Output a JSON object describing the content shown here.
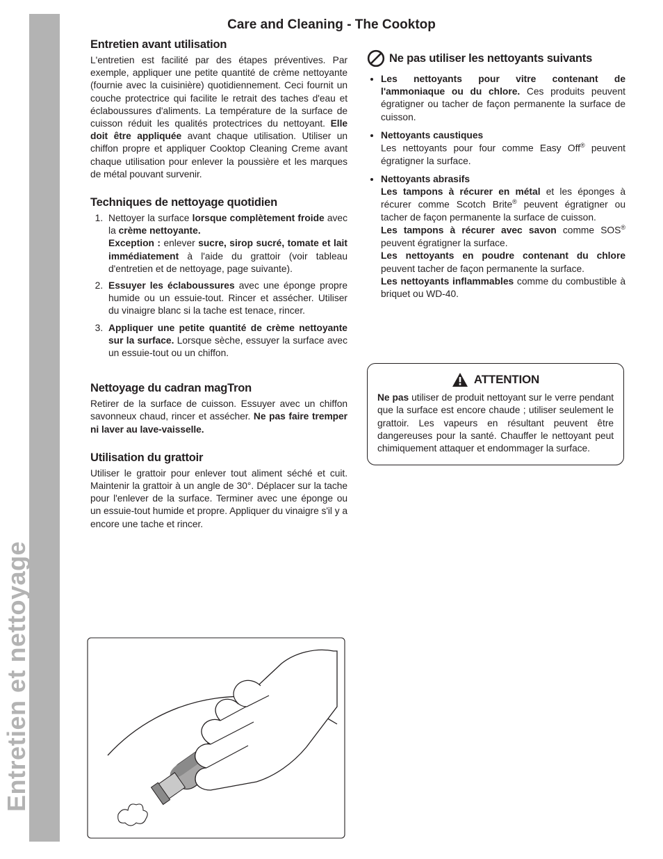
{
  "page": {
    "title": "Care and Cleaning - The Cooktop",
    "sidebar_label": "Entretien et nettoyage"
  },
  "colors": {
    "text": "#231f20",
    "sidebar_bg": "#b3b3b3",
    "sidebar_text": "#b3b3b3",
    "page_bg": "#ffffff",
    "box_border": "#231f20",
    "illus_fill": "#a7a6a6",
    "illus_fill_dark": "#8a8a8a",
    "illus_line": "#231f20"
  },
  "left": {
    "s1": {
      "heading": "Entretien avant utilisation",
      "body_html": "L'entretien est facilité par des étapes préventives. Par exemple, appliquer une petite quantité de crème nettoyante (fournie avec la cuisinière) quotidiennement. Ceci fournit un couche protectrice qui facilite le retrait des taches d'eau et éclaboussures d'aliments. La température de la surface de cuisson réduit les qualités protectrices du nettoyant. <b>Elle doit être appliquée</b> avant chaque utilisation. Utiliser un chiffon propre et appliquer Cooktop Cleaning Creme avant chaque utilisation pour enlever la poussière et les marques de métal pouvant survenir."
    },
    "s2": {
      "heading": "Techniques de nettoyage quotidien",
      "items": [
        "Nettoyer la surface <b>lorsque complètement froide</b> avec la <b>crème nettoyante.</b><br><b>Exception :</b> enlever <b>sucre, sirop sucré, tomate et lait immédiatement</b> à l'aide du grattoir (voir tableau d'entretien et de nettoyage, page suivante).",
        "<b>Essuyer les éclaboussures</b> avec une éponge propre humide ou un essuie-tout. Rincer et assécher. Utiliser du vinaigre blanc si la tache est tenace, rincer.",
        "<b>Appliquer une petite quantité de crème nettoyante sur la surface.</b> Lorsque sèche, essuyer la surface avec un essuie-tout ou un chiffon."
      ]
    },
    "s3": {
      "heading": "Nettoyage du cadran magTron",
      "body_html": "Retirer de la surface de cuisson. Essuyer avec un chiffon savonneux chaud, rincer et assécher. <b>Ne pas faire tremper ni laver au lave-vaisselle.</b>"
    },
    "s4": {
      "heading": "Utilisation du grattoir",
      "body_html": "Utiliser le grattoir pour enlever tout aliment séché et cuit. Maintenir la grattoir à un angle de 30°. Déplacer sur la tache pour l'enlever de la surface. Terminer avec une éponge ou un essuie-tout humide et propre. Appliquer du vinaigre s'il y a encore une tache et rincer."
    }
  },
  "right": {
    "heading": "Ne pas utiliser les nettoyants suivants",
    "items": [
      "<span class=\"just-wide\" style=\"display:block\"><b>Les nettoyants pour vitre contenant de</b></span> <b>l'ammoniaque ou du chlore.</b> Ces produits peuvent égratigner ou tacher de façon permanente la surface de cuisson.",
      "<b>Nettoyants caustiques</b><br>Les nettoyants pour four comme Easy Off<sup>®</sup> peuvent égratigner la surface.",
      "<b>Nettoyants abrasifs</b><br><b>Les tampons à récurer en métal</b> et les éponges à récurer comme Scotch Brite<sup>®</sup> peuvent égratigner ou tacher de façon permanente la surface de cuisson.<br><b>Les tampons à récurer avec savon</b> comme SOS<sup>®</sup> peuvent égratigner la surface.<br><b>Les nettoyants en poudre contenant du chlore</b> peuvent tacher de façon permanente la surface.<br><b>Les nettoyants inflammables</b> comme du combustible à briquet ou WD-40."
    ]
  },
  "attention": {
    "heading": "ATTENTION",
    "body_html": "<b>Ne pas</b> utiliser de produit nettoyant sur le verre pendant que la surface est encore chaude ; utiliser seulement le grattoir. Les vapeurs en résultant peuvent être dangereuses pour la santé. Chauffer le nettoyant peut chimiquement attaquer et endommager la surface."
  },
  "illustration": {
    "caption": "scraper-in-hand",
    "stroke": "#231f20",
    "hand_fill": "#ffffff",
    "scraper_fill": "#a7a6a6",
    "scraper_fill_dark": "#8a8a8a"
  }
}
